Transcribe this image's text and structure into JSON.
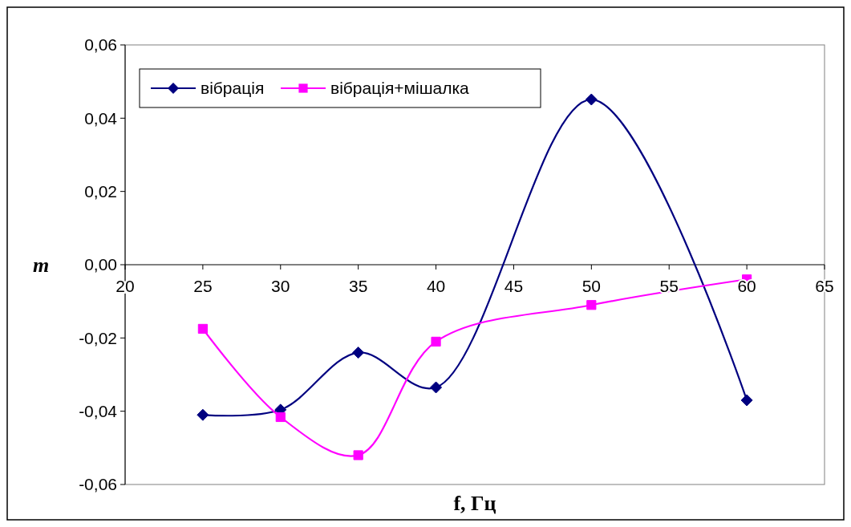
{
  "chart_data": {
    "type": "line",
    "xlabel": "f, Гц",
    "ylabel": "m",
    "x": [
      25,
      30,
      35,
      40,
      50,
      60
    ],
    "series": [
      {
        "name": "вібрація",
        "color": "#000080",
        "marker": "diamond",
        "values": [
          -0.041,
          -0.0396,
          -0.024,
          -0.0335,
          0.0451,
          -0.037
        ]
      },
      {
        "name": "вібрація+мішалка",
        "color": "#ff00ff",
        "marker": "square",
        "values": [
          -0.0175,
          -0.0416,
          -0.052,
          -0.021,
          -0.011,
          -0.004
        ]
      }
    ],
    "xlim": [
      20,
      65
    ],
    "xticks": [
      20,
      25,
      30,
      35,
      40,
      45,
      50,
      55,
      60,
      65
    ],
    "ylim": [
      -0.06,
      0.06
    ],
    "yticks": [
      {
        "value": -0.06,
        "label": "-0,06"
      },
      {
        "value": -0.04,
        "label": "-0,04"
      },
      {
        "value": -0.02,
        "label": "-0,02"
      },
      {
        "value": 0,
        "label": "0,00"
      },
      {
        "value": 0.02,
        "label": "0,02"
      },
      {
        "value": 0.04,
        "label": "0,04"
      },
      {
        "value": 0.06,
        "label": "0,06"
      }
    ],
    "grid": false,
    "legend": "top left",
    "line_style": "solid"
  }
}
